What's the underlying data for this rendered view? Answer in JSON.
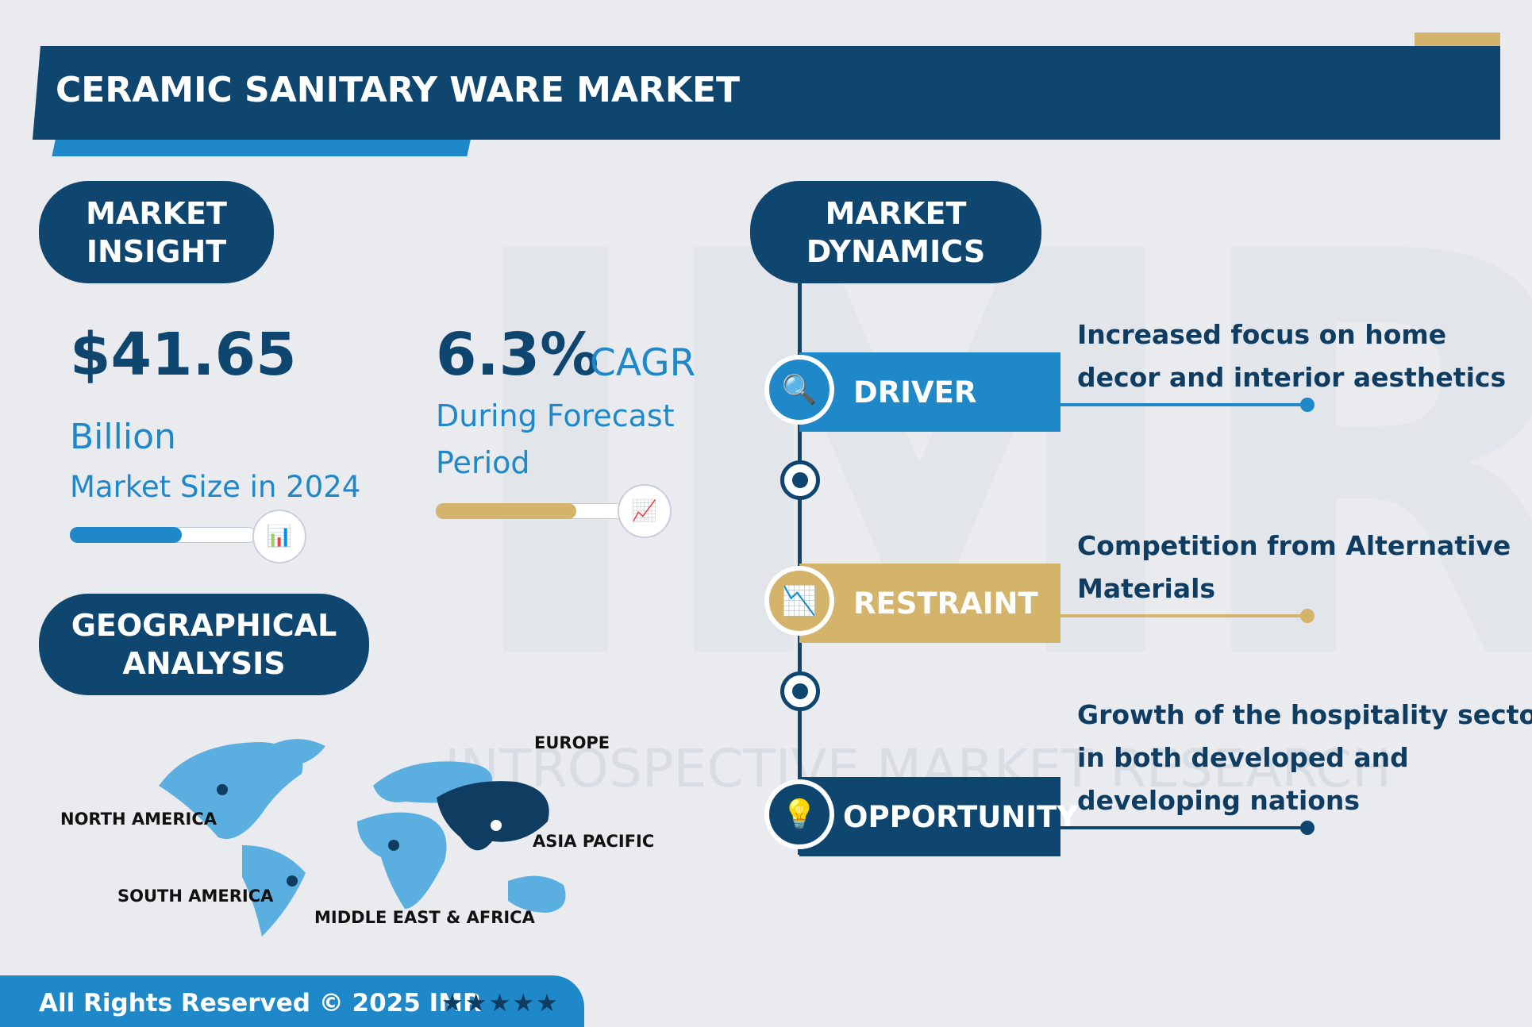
{
  "header": {
    "title": "CERAMIC SANITARY WARE MARKET"
  },
  "watermark": {
    "logo": "IMR",
    "text": "INTROSPECTIVE MARKET RESEARCH"
  },
  "insight": {
    "heading": "MARKET INSIGHT",
    "market_size": "$41.65",
    "market_size_unit": "Billion",
    "market_size_caption": "Market Size in 2024",
    "cagr": "6.3%",
    "cagr_label": "CAGR",
    "cagr_caption": "During Forecast Period"
  },
  "geography": {
    "heading": "GEOGRAPHICAL ANALYSIS",
    "regions": [
      "NORTH AMERICA",
      "SOUTH AMERICA",
      "MIDDLE EAST & AFRICA",
      "EUROPE",
      "ASIA PACIFIC"
    ]
  },
  "dynamics": {
    "heading": "MARKET DYNAMICS",
    "items": [
      {
        "label": "DRIVER",
        "text": "Increased focus on home decor and interior aesthetics"
      },
      {
        "label": "RESTRAINT",
        "text": "Competition from Alternative Materials"
      },
      {
        "label": "OPPORTUNITY",
        "text": "Growth of the hospitality sector in both developed and developing nations"
      }
    ]
  },
  "footer": {
    "text": "All Rights Reserved © 2025 IMR",
    "rating": "★★★★★"
  }
}
